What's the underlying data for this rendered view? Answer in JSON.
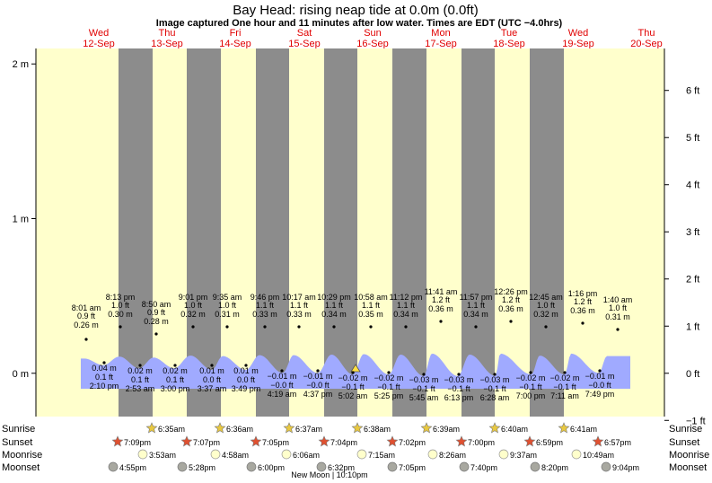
{
  "title": "Bay Head: rising  neap tide at 0.0m (0.0ft)",
  "subtitle": "Image captured One hour and 11 minutes after low water. Times are EDT (UTC −4.0hrs)",
  "days": [
    {
      "name": "Wed",
      "date": "12-Sep"
    },
    {
      "name": "Thu",
      "date": "13-Sep"
    },
    {
      "name": "Fri",
      "date": "14-Sep"
    },
    {
      "name": "Sat",
      "date": "15-Sep"
    },
    {
      "name": "Sun",
      "date": "16-Sep"
    },
    {
      "name": "Mon",
      "date": "17-Sep"
    },
    {
      "name": "Tue",
      "date": "18-Sep"
    },
    {
      "name": "Wed",
      "date": "19-Sep"
    },
    {
      "name": "Thu",
      "date": "20-Sep"
    }
  ],
  "row_labels": {
    "sunrise": "Sunrise",
    "sunset": "Sunset",
    "moonrise": "Moonrise",
    "moonset": "Moonset"
  },
  "moon_note": "New Moon | 10:10pm",
  "colors": {
    "day": "#ffffcc",
    "night": "#8c8c8c",
    "water": "#a0aaff",
    "daylabel": "#e00000",
    "sunrise_star": "#e8c840",
    "sunset_star": "#e05030",
    "moonrise": "#ffffcc",
    "moonset": "#a8a8a0"
  },
  "chart_data": {
    "type": "area",
    "ylim_m": [
      -0.28,
      2.1
    ],
    "m_ticks": [
      {
        "v": 0,
        "label": "0 m"
      },
      {
        "v": 1,
        "label": "1 m"
      },
      {
        "v": 2,
        "label": "2 m"
      }
    ],
    "ft_ticks": [
      {
        "v": -1,
        "label": "−1 ft"
      },
      {
        "v": 0,
        "label": "0 ft"
      },
      {
        "v": 1,
        "label": "1 ft"
      },
      {
        "v": 2,
        "label": "2 ft"
      },
      {
        "v": 3,
        "label": "3 ft"
      },
      {
        "v": 4,
        "label": "4 ft"
      },
      {
        "v": 5,
        "label": "5 ft"
      },
      {
        "v": 6,
        "label": "6 ft"
      }
    ],
    "high_tides": [
      {
        "time": "8:01 am",
        "ft": "0.9 ft",
        "m": "0.26 m",
        "value": 0.26
      },
      {
        "time": "8:13 pm",
        "ft": "1.0 ft",
        "m": "0.30 m",
        "value": 0.3
      },
      {
        "time": "8:50 am",
        "ft": "0.9 ft",
        "m": "0.28 m",
        "value": 0.28
      },
      {
        "time": "9:01 pm",
        "ft": "1.0 ft",
        "m": "0.32 m",
        "value": 0.32
      },
      {
        "time": "9:35 am",
        "ft": "1.0 ft",
        "m": "0.31 m",
        "value": 0.31
      },
      {
        "time": "9:46 pm",
        "ft": "1.1 ft",
        "m": "0.33 m",
        "value": 0.33
      },
      {
        "time": "10:17 am",
        "ft": "1.1 ft",
        "m": "0.33 m",
        "value": 0.33
      },
      {
        "time": "10:29 pm",
        "ft": "1.1 ft",
        "m": "0.34 m",
        "value": 0.34
      },
      {
        "time": "10:58 am",
        "ft": "1.1 ft",
        "m": "0.35 m",
        "value": 0.35
      },
      {
        "time": "11:12 pm",
        "ft": "1.1 ft",
        "m": "0.34 m",
        "value": 0.34
      },
      {
        "time": "11:41 am",
        "ft": "1.2 ft",
        "m": "0.36 m",
        "value": 0.36
      },
      {
        "time": "11:57 pm",
        "ft": "1.1 ft",
        "m": "0.34 m",
        "value": 0.34
      },
      {
        "time": "12:26 pm",
        "ft": "1.2 ft",
        "m": "0.36 m",
        "value": 0.36
      },
      {
        "time": "12:45 am",
        "ft": "1.0 ft",
        "m": "0.32 m",
        "value": 0.32
      },
      {
        "time": "1:16 pm",
        "ft": "1.2 ft",
        "m": "0.36 m",
        "value": 0.36
      },
      {
        "time": "1:40 am",
        "ft": "1.0 ft",
        "m": "0.31 m",
        "value": 0.31
      }
    ],
    "low_tides": [
      {
        "m": "0.04 m",
        "ft": "0.1 ft",
        "time": "2:10 pm",
        "value": 0.04
      },
      {
        "m": "0.02 m",
        "ft": "0.1 ft",
        "time": "2:53 am",
        "value": 0.02
      },
      {
        "m": "0.02 m",
        "ft": "0.1 ft",
        "time": "3:00 pm",
        "value": 0.02
      },
      {
        "m": "0.01 m",
        "ft": "0.0 ft",
        "time": "3:37 am",
        "value": 0.01
      },
      {
        "m": "0.01 m",
        "ft": "0.0 ft",
        "time": "3:49 pm",
        "value": 0.01
      },
      {
        "m": "−0.01 m",
        "ft": "−0.0 ft",
        "time": "4:19 am",
        "value": -0.01
      },
      {
        "m": "−0.01 m",
        "ft": "−0.0 ft",
        "time": "4:37 pm",
        "value": -0.01
      },
      {
        "m": "−0.02 m",
        "ft": "−0.1 ft",
        "time": "5:02 am",
        "value": -0.02
      },
      {
        "m": "−0.02 m",
        "ft": "−0.1 ft",
        "time": "5:25 pm",
        "value": -0.02
      },
      {
        "m": "−0.03 m",
        "ft": "−0.1 ft",
        "time": "5:45 am",
        "value": -0.03
      },
      {
        "m": "−0.03 m",
        "ft": "−0.1 ft",
        "time": "6:13 pm",
        "value": -0.03
      },
      {
        "m": "−0.03 m",
        "ft": "−0.1 ft",
        "time": "6:28 am",
        "value": -0.03
      },
      {
        "m": "−0.02 m",
        "ft": "−0.1 ft",
        "time": "7:00 pm",
        "value": -0.02
      },
      {
        "m": "−0.02 m",
        "ft": "−0.1 ft",
        "time": "7:11 am",
        "value": -0.02
      },
      {
        "m": "−0.01 m",
        "ft": "−0.0 ft",
        "time": "7:49 pm",
        "value": -0.01
      }
    ],
    "sunrise": [
      "6:35am",
      "6:36am",
      "6:37am",
      "6:38am",
      "6:39am",
      "6:40am",
      "6:41am"
    ],
    "sunset": [
      "7:09pm",
      "7:07pm",
      "7:05pm",
      "7:04pm",
      "7:02pm",
      "7:00pm",
      "6:59pm",
      "6:57pm"
    ],
    "moonrise": [
      "3:53am",
      "4:58am",
      "6:06am",
      "7:15am",
      "8:26am",
      "9:37am",
      "10:49am"
    ],
    "moonset": [
      "4:55pm",
      "5:28pm",
      "6:00pm",
      "6:32pm",
      "7:05pm",
      "7:40pm",
      "8:20pm",
      "9:04pm"
    ]
  }
}
